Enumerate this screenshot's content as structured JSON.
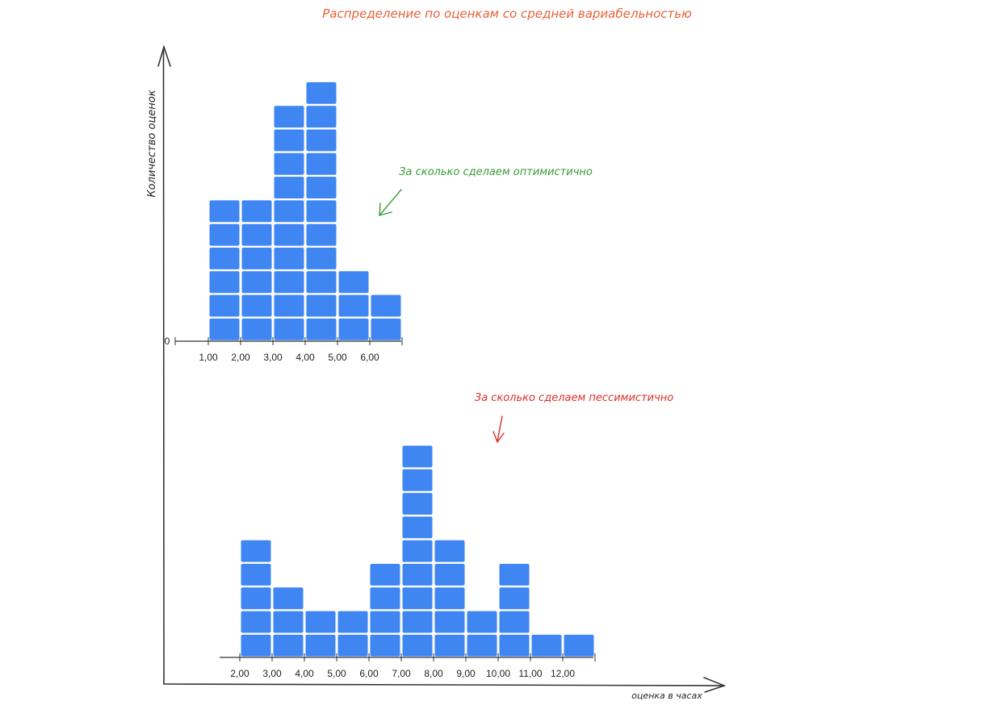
{
  "title": "Распределение по оценкам со средней вариабельностью",
  "axes": {
    "ylabel": "Количество оценок",
    "xlabel": "оценка в часах"
  },
  "colors": {
    "block": "#3f86f2",
    "title": "#e8613a",
    "optimistic": "#3a9a3a",
    "pessimistic": "#d9302c",
    "axis": "#333333"
  },
  "chart_data": [
    {
      "type": "bar",
      "annotation": "За сколько сделаем оптимистично",
      "zero_label": "0",
      "categories": [
        "1,00",
        "2,00",
        "3,00",
        "4,00",
        "5,00",
        "6,00"
      ],
      "values": [
        6,
        6,
        10,
        11,
        3,
        2
      ],
      "unit_block": 1
    },
    {
      "type": "bar",
      "annotation": "За сколько сделаем пессимистично",
      "categories": [
        "2,00",
        "3,00",
        "4,00",
        "5,00",
        "6,00",
        "7,00",
        "8,00",
        "9,00",
        "10,00",
        "11,00",
        "12,00"
      ],
      "values": [
        5,
        3,
        2,
        2,
        4,
        9,
        5,
        2,
        4,
        1,
        1
      ],
      "unit_block": 1
    }
  ]
}
